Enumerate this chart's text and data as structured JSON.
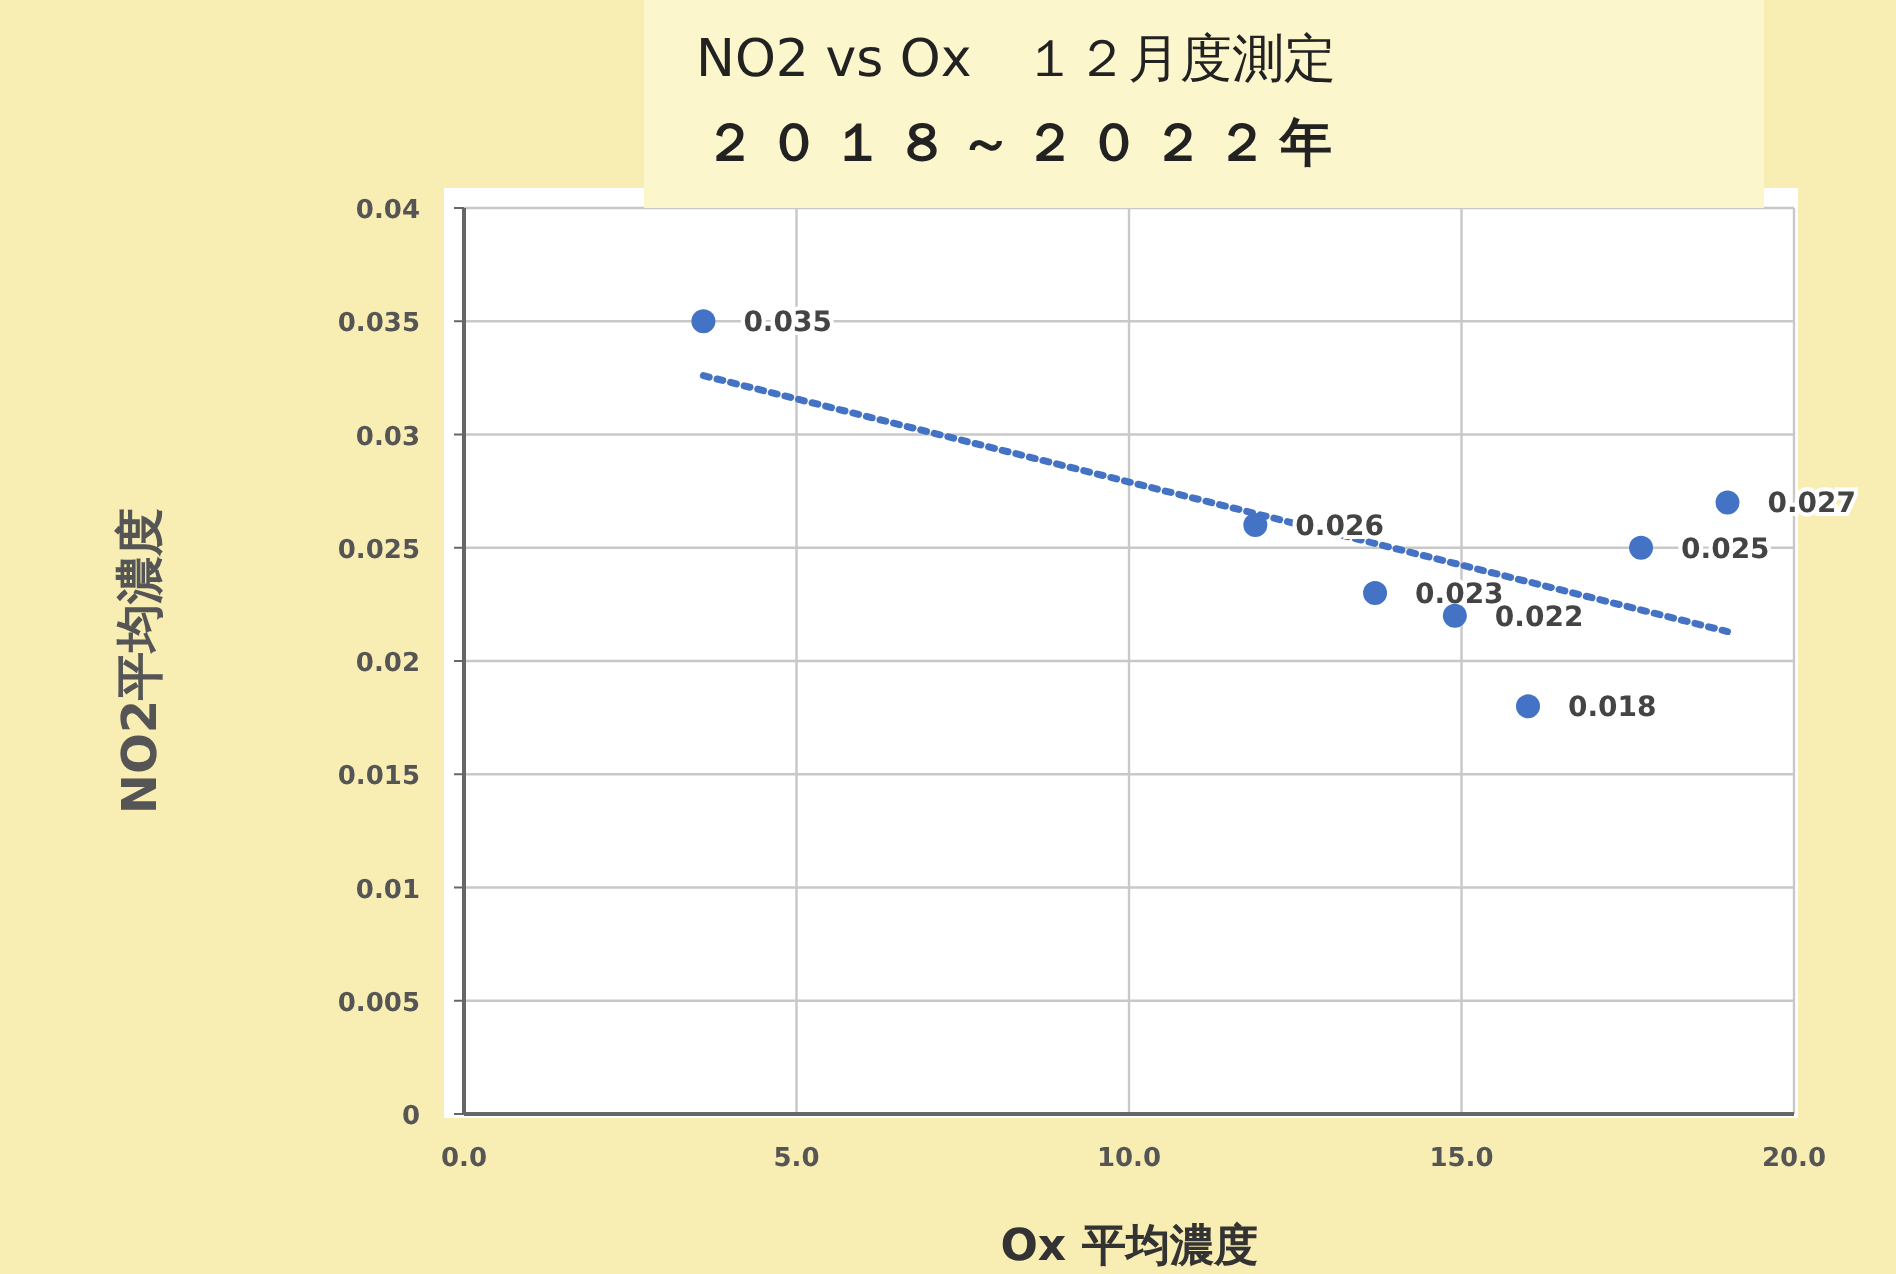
{
  "chart_data": {
    "type": "scatter",
    "title": "NO2 vs Ox　１２月度測定",
    "subtitle": "２０１８～２０２２年",
    "xlabel": "Ox 平均濃度",
    "ylabel": "NO2平均濃度",
    "x": [
      3.6,
      11.9,
      13.7,
      14.9,
      16.0,
      17.7,
      19.0
    ],
    "series": [
      {
        "color": "#4472c4",
        "marker": "circle",
        "values": [
          0.035,
          0.026,
          0.023,
          0.022,
          0.018,
          0.025,
          0.027
        ],
        "value_labels": [
          "0.035",
          "0.026",
          "0.023",
          "0.022",
          "0.018",
          "0.025",
          "0.027"
        ]
      },
      {
        "type": "line",
        "color": "#4472c4",
        "line_style": "dotted",
        "x": [
          3.6,
          19.0
        ],
        "values": [
          0.0326,
          0.0213
        ]
      }
    ],
    "xlim": [
      0,
      20
    ],
    "xticks": [
      {
        "value": 0,
        "label": "0.0"
      },
      {
        "value": 5,
        "label": "5.0"
      },
      {
        "value": 10,
        "label": "10.0"
      },
      {
        "value": 15,
        "label": "15.0"
      },
      {
        "value": 20,
        "label": "20.0"
      }
    ],
    "ylim": [
      0,
      0.04
    ],
    "yticks": [
      0,
      0.005,
      0.01,
      0.015,
      0.02,
      0.025,
      0.03,
      0.035,
      0.04
    ],
    "grid": true
  }
}
